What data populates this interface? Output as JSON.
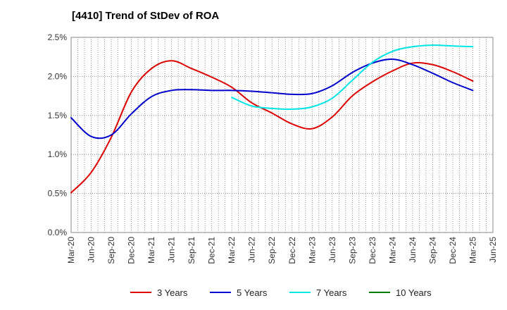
{
  "chart_data": {
    "type": "line",
    "title": "[4410]  Trend of StDev of ROA",
    "xlabel": "",
    "ylabel": "",
    "x_ticks": [
      "Mar-20",
      "Jun-20",
      "Sep-20",
      "Dec-20",
      "Mar-21",
      "Jun-21",
      "Sep-21",
      "Dec-21",
      "Mar-22",
      "Jun-22",
      "Sep-22",
      "Dec-22",
      "Mar-23",
      "Jun-23",
      "Sep-23",
      "Dec-23",
      "Mar-24",
      "Jun-24",
      "Sep-24",
      "Dec-24",
      "Mar-25",
      "Jun-25"
    ],
    "y_ticks": [
      "0.0%",
      "0.5%",
      "1.0%",
      "1.5%",
      "2.0%",
      "2.5%"
    ],
    "ylim": [
      0,
      2.5
    ],
    "y_unit": "%",
    "grid": true,
    "legend_position": "bottom",
    "series": [
      {
        "name": "3 Years",
        "color": "#dd0000",
        "x_index": [
          0,
          1,
          2,
          3,
          4,
          5,
          6,
          7,
          8,
          9,
          10,
          11,
          12,
          13,
          14,
          15,
          16,
          17,
          18,
          19,
          20
        ],
        "values": [
          0.51,
          0.77,
          1.22,
          1.8,
          2.1,
          2.2,
          2.1,
          1.99,
          1.86,
          1.66,
          1.53,
          1.39,
          1.33,
          1.48,
          1.75,
          1.93,
          2.07,
          2.17,
          2.15,
          2.06,
          1.94
        ]
      },
      {
        "name": "5 Years",
        "color": "#0000cc",
        "x_index": [
          0,
          1,
          2,
          3,
          4,
          5,
          6,
          7,
          8,
          9,
          10,
          11,
          12,
          13,
          14,
          15,
          16,
          17,
          18,
          19,
          20
        ],
        "values": [
          1.47,
          1.23,
          1.25,
          1.52,
          1.74,
          1.82,
          1.83,
          1.82,
          1.82,
          1.81,
          1.79,
          1.77,
          1.78,
          1.88,
          2.05,
          2.17,
          2.22,
          2.15,
          2.04,
          1.92,
          1.82
        ]
      },
      {
        "name": "7 Years",
        "color": "#00e5e5",
        "x_index": [
          8,
          9,
          10,
          11,
          12,
          13,
          14,
          15,
          16,
          17,
          18,
          19,
          20
        ],
        "values": [
          1.73,
          1.62,
          1.59,
          1.58,
          1.61,
          1.72,
          1.95,
          2.18,
          2.32,
          2.38,
          2.4,
          2.39,
          2.38
        ]
      },
      {
        "name": "10 Years",
        "color": "#008000",
        "x_index": [],
        "values": []
      }
    ]
  }
}
